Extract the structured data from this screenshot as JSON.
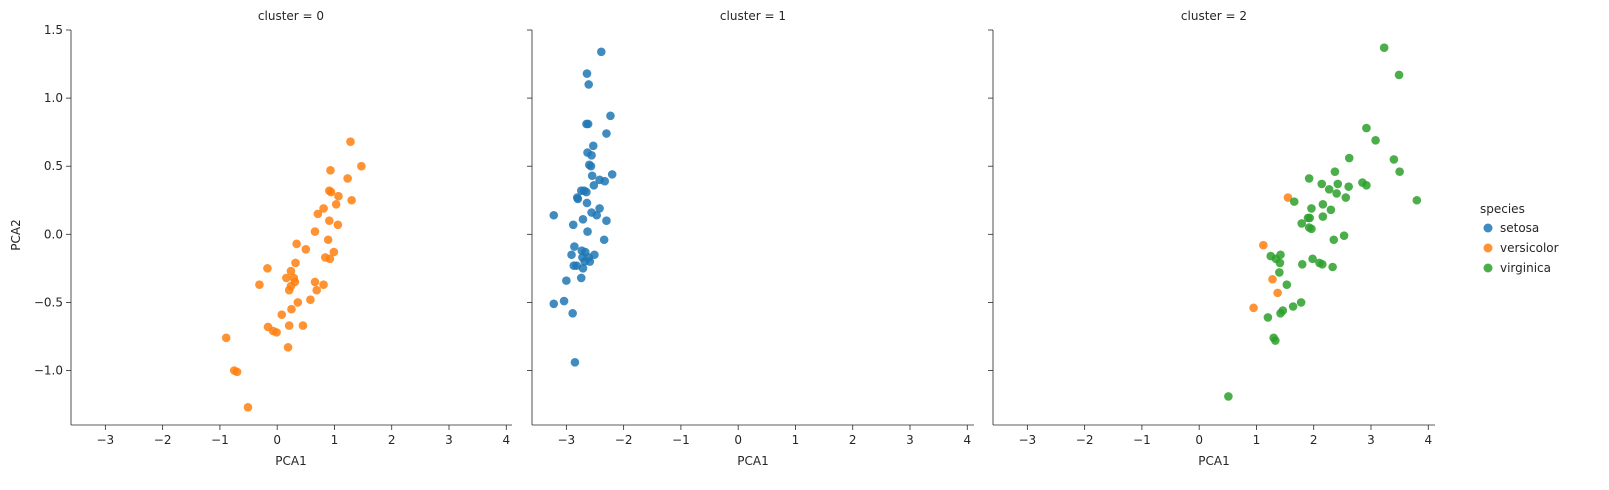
{
  "chart_data": {
    "type": "scatter",
    "facet_by": "cluster",
    "xlabel": "PCA1",
    "ylabel": "PCA2",
    "xlim": [
      -3.6,
      4.1
    ],
    "ylim": [
      -1.4,
      1.5
    ],
    "xticks": [
      -3,
      -2,
      -1,
      0,
      1,
      2,
      3,
      4
    ],
    "yticks": [
      -1.0,
      -0.5,
      0.0,
      0.5,
      1.0,
      1.5
    ],
    "xtick_labels": [
      "−3",
      "−2",
      "−1",
      "0",
      "1",
      "2",
      "3",
      "4"
    ],
    "ytick_labels": [
      "−1.0",
      "−0.5",
      "0.0",
      "0.5",
      "1.0",
      "1.5"
    ],
    "legend": {
      "title": "species",
      "placement": "right",
      "entries": [
        {
          "label": "setosa",
          "color": "#1f77b4"
        },
        {
          "label": "versicolor",
          "color": "#ff7f0e"
        },
        {
          "label": "virginica",
          "color": "#2ca02c"
        }
      ]
    },
    "panels": [
      {
        "title": "cluster = 0",
        "series": [
          {
            "name": "versicolor",
            "color": "#ff7f0e",
            "points": [
              [
                1.28,
                0.68
              ],
              [
                1.47,
                0.5
              ],
              [
                0.93,
                0.47
              ],
              [
                1.23,
                0.41
              ],
              [
                0.91,
                0.32
              ],
              [
                0.94,
                0.31
              ],
              [
                1.3,
                0.25
              ],
              [
                1.07,
                0.28
              ],
              [
                0.81,
                0.19
              ],
              [
                1.03,
                0.22
              ],
              [
                0.71,
                0.15
              ],
              [
                0.91,
                0.1
              ],
              [
                1.06,
                0.07
              ],
              [
                0.66,
                0.02
              ],
              [
                0.89,
                -0.04
              ],
              [
                0.34,
                -0.07
              ],
              [
                0.5,
                -0.11
              ],
              [
                0.99,
                -0.13
              ],
              [
                0.84,
                -0.17
              ],
              [
                0.92,
                -0.18
              ],
              [
                0.32,
                -0.21
              ],
              [
                -0.17,
                -0.25
              ],
              [
                0.24,
                -0.27
              ],
              [
                0.16,
                -0.32
              ],
              [
                0.29,
                -0.32
              ],
              [
                0.31,
                -0.35
              ],
              [
                0.66,
                -0.35
              ],
              [
                0.81,
                -0.37
              ],
              [
                0.24,
                -0.38
              ],
              [
                -0.31,
                -0.37
              ],
              [
                0.21,
                -0.41
              ],
              [
                0.69,
                -0.41
              ],
              [
                0.58,
                -0.48
              ],
              [
                0.36,
                -0.5
              ],
              [
                0.25,
                -0.55
              ],
              [
                0.08,
                -0.59
              ],
              [
                0.21,
                -0.67
              ],
              [
                0.45,
                -0.67
              ],
              [
                -0.16,
                -0.68
              ],
              [
                -0.07,
                -0.71
              ],
              [
                -0.01,
                -0.72
              ],
              [
                -0.89,
                -0.76
              ],
              [
                0.19,
                -0.83
              ],
              [
                -0.75,
                -1.0
              ],
              [
                -0.7,
                -1.01
              ],
              [
                -0.51,
                -1.27
              ]
            ]
          }
        ]
      },
      {
        "title": "cluster = 1",
        "series": [
          {
            "name": "setosa",
            "color": "#1f77b4",
            "points": [
              [
                -2.39,
                1.34
              ],
              [
                -2.64,
                1.18
              ],
              [
                -2.61,
                1.1
              ],
              [
                -2.23,
                0.87
              ],
              [
                -2.62,
                0.81
              ],
              [
                -2.65,
                0.81
              ],
              [
                -2.3,
                0.74
              ],
              [
                -2.53,
                0.65
              ],
              [
                -2.63,
                0.6
              ],
              [
                -2.56,
                0.58
              ],
              [
                -2.6,
                0.51
              ],
              [
                -2.57,
                0.5
              ],
              [
                -2.2,
                0.44
              ],
              [
                -2.55,
                0.43
              ],
              [
                -2.42,
                0.4
              ],
              [
                -2.33,
                0.39
              ],
              [
                -2.52,
                0.36
              ],
              [
                -2.74,
                0.32
              ],
              [
                -2.69,
                0.32
              ],
              [
                -2.65,
                0.31
              ],
              [
                -2.81,
                0.27
              ],
              [
                -2.8,
                0.26
              ],
              [
                -2.64,
                0.23
              ],
              [
                -2.42,
                0.19
              ],
              [
                -2.56,
                0.16
              ],
              [
                -2.47,
                0.14
              ],
              [
                -3.22,
                0.14
              ],
              [
                -2.71,
                0.11
              ],
              [
                -2.3,
                0.1
              ],
              [
                -2.88,
                0.07
              ],
              [
                -2.63,
                0.02
              ],
              [
                -2.34,
                -0.04
              ],
              [
                -2.86,
                -0.09
              ],
              [
                -2.73,
                -0.12
              ],
              [
                -2.67,
                -0.13
              ],
              [
                -2.91,
                -0.15
              ],
              [
                -2.51,
                -0.15
              ],
              [
                -2.72,
                -0.17
              ],
              [
                -2.61,
                -0.17
              ],
              [
                -2.68,
                -0.2
              ],
              [
                -2.59,
                -0.2
              ],
              [
                -2.87,
                -0.23
              ],
              [
                -2.82,
                -0.23
              ],
              [
                -2.71,
                -0.25
              ],
              [
                -2.74,
                -0.32
              ],
              [
                -3.0,
                -0.34
              ],
              [
                -3.04,
                -0.49
              ],
              [
                -3.22,
                -0.51
              ],
              [
                -2.89,
                -0.58
              ],
              [
                -2.85,
                -0.94
              ]
            ]
          }
        ]
      },
      {
        "title": "cluster = 2",
        "series": [
          {
            "name": "versicolor",
            "color": "#ff7f0e",
            "points": [
              [
                1.55,
                0.27
              ],
              [
                1.12,
                -0.08
              ],
              [
                1.28,
                -0.33
              ],
              [
                1.37,
                -0.43
              ],
              [
                0.95,
                -0.54
              ]
            ]
          },
          {
            "name": "virginica",
            "color": "#2ca02c",
            "points": [
              [
                3.23,
                1.37
              ],
              [
                3.49,
                1.17
              ],
              [
                2.92,
                0.78
              ],
              [
                3.08,
                0.69
              ],
              [
                2.62,
                0.56
              ],
              [
                3.4,
                0.55
              ],
              [
                3.5,
                0.46
              ],
              [
                2.37,
                0.46
              ],
              [
                1.92,
                0.41
              ],
              [
                2.85,
                0.38
              ],
              [
                2.42,
                0.37
              ],
              [
                2.14,
                0.37
              ],
              [
                2.92,
                0.36
              ],
              [
                2.61,
                0.35
              ],
              [
                2.27,
                0.33
              ],
              [
                2.4,
                0.3
              ],
              [
                2.56,
                0.27
              ],
              [
                3.8,
                0.25
              ],
              [
                1.66,
                0.24
              ],
              [
                2.16,
                0.22
              ],
              [
                1.96,
                0.19
              ],
              [
                2.3,
                0.18
              ],
              [
                1.93,
                0.12
              ],
              [
                1.9,
                0.12
              ],
              [
                2.16,
                0.13
              ],
              [
                1.79,
                0.08
              ],
              [
                1.92,
                0.05
              ],
              [
                1.96,
                0.04
              ],
              [
                2.53,
                -0.01
              ],
              [
                2.35,
                -0.04
              ],
              [
                1.42,
                -0.15
              ],
              [
                1.25,
                -0.16
              ],
              [
                1.34,
                -0.18
              ],
              [
                1.41,
                -0.21
              ],
              [
                1.98,
                -0.18
              ],
              [
                2.1,
                -0.21
              ],
              [
                2.15,
                -0.22
              ],
              [
                1.8,
                -0.22
              ],
              [
                2.33,
                -0.24
              ],
              [
                1.4,
                -0.28
              ],
              [
                1.53,
                -0.37
              ],
              [
                1.78,
                -0.5
              ],
              [
                1.64,
                -0.53
              ],
              [
                1.46,
                -0.56
              ],
              [
                1.42,
                -0.58
              ],
              [
                1.2,
                -0.61
              ],
              [
                1.3,
                -0.76
              ],
              [
                1.33,
                -0.78
              ],
              [
                0.51,
                -1.19
              ]
            ]
          }
        ]
      }
    ]
  }
}
